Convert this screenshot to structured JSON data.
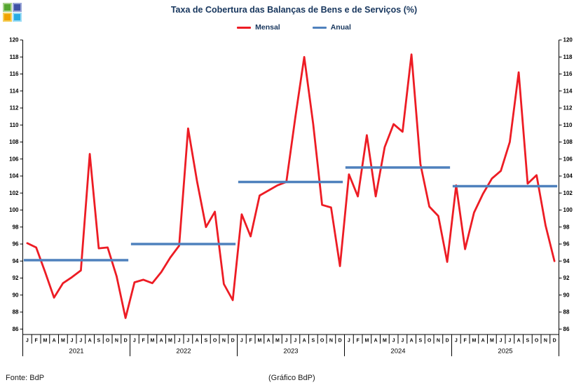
{
  "header": {
    "title": "Taxa de Cobertura das Balanças de Bens e de Serviços (%)",
    "title_color": "#17365d"
  },
  "logo": {
    "squares": [
      {
        "id": "top-left",
        "fill": "#55a630",
        "edge": "#a9d18e"
      },
      {
        "id": "top-right",
        "fill": "#3f51a5",
        "edge": "#98a4d6"
      },
      {
        "id": "bottom-left",
        "fill": "#f0a202",
        "edge": "#f5cf5a"
      },
      {
        "id": "bottom-right",
        "fill": "#29abe2",
        "edge": "#9bdcf5"
      }
    ]
  },
  "footer": {
    "source": "Fonte: BdP",
    "credit": "(Gráfico BdP)"
  },
  "chart_data": {
    "type": "line",
    "title": "Taxa de Cobertura das Balanças de Bens e de Serviços (%)",
    "xlabel": "",
    "ylabel": "",
    "ylim": [
      86,
      120
    ],
    "ytick_step": 2,
    "grid": false,
    "legend_position": "top",
    "axis_color": "#000000",
    "x_categories_months": [
      "J",
      "F",
      "M",
      "A",
      "M",
      "J",
      "J",
      "A",
      "S",
      "O",
      "N",
      "D"
    ],
    "years": [
      "2021",
      "2022",
      "2023",
      "2024",
      "2025"
    ],
    "series": [
      {
        "name": "Mensal",
        "type": "line",
        "color": "#ed1c24",
        "values": [
          96.1,
          95.6,
          92.7,
          89.7,
          91.4,
          92.1,
          92.9,
          106.6,
          95.5,
          95.6,
          92.2,
          87.3,
          91.5,
          91.8,
          91.4,
          92.7,
          94.4,
          95.8,
          109.6,
          103.4,
          98.0,
          99.8,
          91.3,
          89.4,
          99.5,
          96.9,
          101.7,
          102.3,
          102.9,
          103.3,
          110.9,
          118.0,
          110.1,
          100.6,
          100.3,
          93.4,
          104.2,
          101.6,
          108.8,
          101.6,
          107.4,
          110.1,
          109.2,
          118.3,
          105.4,
          100.4,
          99.3,
          93.9,
          102.9,
          95.4,
          99.7,
          101.9,
          103.7,
          104.6,
          108.0,
          116.2,
          103.1,
          104.1,
          98.2,
          94.0
        ]
      },
      {
        "name": "Anual",
        "type": "annual-average-segments",
        "color": "#4f81bd",
        "values": [
          94.1,
          96.0,
          103.3,
          105.0,
          102.8
        ]
      }
    ]
  }
}
